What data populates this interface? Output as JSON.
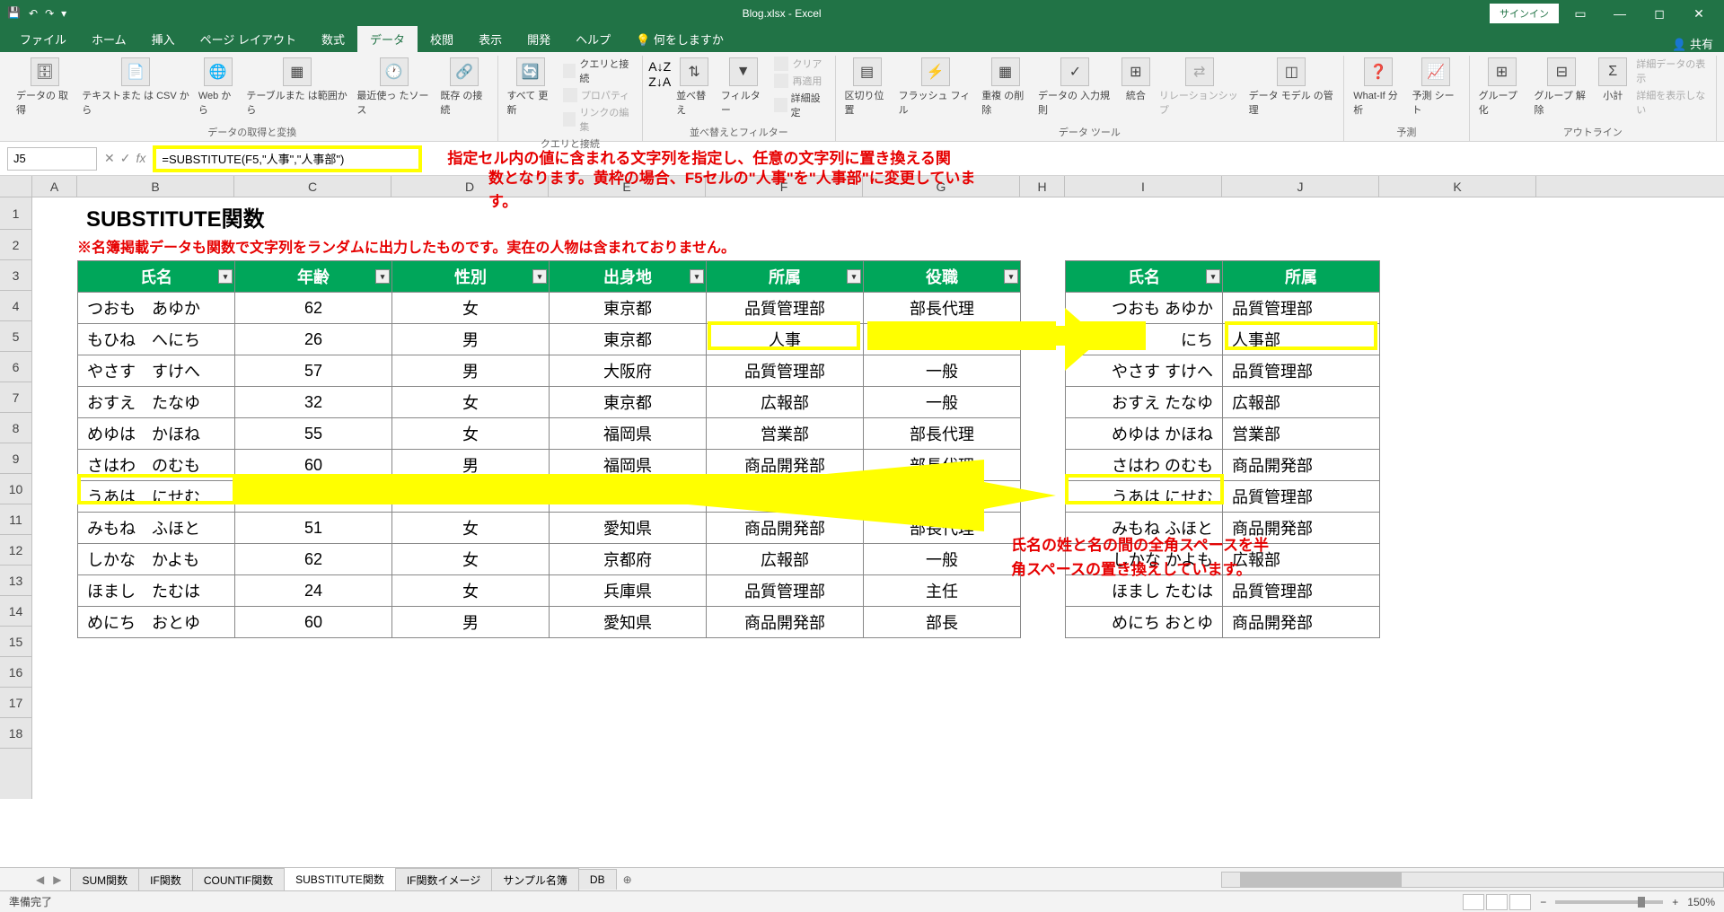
{
  "titlebar": {
    "filename": "Blog.xlsx - Excel",
    "signin": "サインイン"
  },
  "tabs": {
    "file": "ファイル",
    "home": "ホーム",
    "insert": "挿入",
    "page_layout": "ページ レイアウト",
    "formulas": "数式",
    "data": "データ",
    "review": "校閲",
    "view": "表示",
    "developer": "開発",
    "help": "ヘルプ",
    "tell_me": "何をしますか",
    "share": "共有"
  },
  "ribbon": {
    "g1": {
      "label": "データの取得と変換",
      "b1": "データの\n取得",
      "b2": "テキストまた\nは CSV から",
      "b3": "Web\nから",
      "b4": "テーブルまた\nは範囲から",
      "b5": "最近使っ\nたソース",
      "b6": "既存\nの接続"
    },
    "g2": {
      "label": "クエリと接続",
      "b1": "すべて\n更新",
      "s1": "クエリと接続",
      "s2": "プロパティ",
      "s3": "リンクの編集"
    },
    "g3": {
      "label": "並べ替えとフィルター",
      "b1": "並べ替え",
      "b2": "フィルター",
      "s1": "クリア",
      "s2": "再適用",
      "s3": "詳細設定"
    },
    "g4": {
      "label": "データ ツール",
      "b1": "区切り位置",
      "b2": "フラッシュ\nフィル",
      "b3": "重複\nの削除",
      "b4": "データの\n入力規則",
      "b5": "統合",
      "b6": "リレーションシップ",
      "b7": "データ モデル\nの管理"
    },
    "g5": {
      "label": "予測",
      "b1": "What-If 分析",
      "b2": "予測\nシート"
    },
    "g6": {
      "label": "アウトライン",
      "b1": "グループ\n化",
      "b2": "グループ\n解除",
      "b3": "小計",
      "s1": "詳細データの表示",
      "s2": "詳細を表示しない"
    }
  },
  "namebox": "J5",
  "formula": "=SUBSTITUTE(F5,\"人事\",\"人事部\")",
  "annotation1_l1": "指定セル内の値に含まれる文字列を指定し、任意の文字列に置き換える関",
  "annotation1_l2": "数となります。黄枠の場合、F5セルの\"人事\"を\"人事部\"に変更していま",
  "annotation1_l3": "す。",
  "annotation2_l1": "氏名の姓と名の間の全角スペースを半",
  "annotation2_l2": "角スペースの置き換えしています。",
  "cols": {
    "A": "A",
    "B": "B",
    "C": "C",
    "D": "D",
    "E": "E",
    "F": "F",
    "G": "G",
    "H": "H",
    "I": "I",
    "J": "J",
    "K": "K"
  },
  "content": {
    "title": "SUBSTITUTE関数",
    "note": "※名簿掲載データも関数で文字列をランダムに出力したものです。実在の人物は含まれておりません。"
  },
  "table1": {
    "h1": "氏名",
    "h2": "年齢",
    "h3": "性別",
    "h4": "出身地",
    "h5": "所属",
    "h6": "役職",
    "rows": [
      {
        "c1": "つおも　あゆか",
        "c2": "62",
        "c3": "女",
        "c4": "東京都",
        "c5": "品質管理部",
        "c6": "部長代理"
      },
      {
        "c1": "もひね　へにち",
        "c2": "26",
        "c3": "男",
        "c4": "東京都",
        "c5": "人事",
        "c6": ""
      },
      {
        "c1": "やさす　すけへ",
        "c2": "57",
        "c3": "男",
        "c4": "大阪府",
        "c5": "品質管理部",
        "c6": "一般"
      },
      {
        "c1": "おすえ　たなゆ",
        "c2": "32",
        "c3": "女",
        "c4": "東京都",
        "c5": "広報部",
        "c6": "一般"
      },
      {
        "c1": "めゆは　かほね",
        "c2": "55",
        "c3": "女",
        "c4": "福岡県",
        "c5": "営業部",
        "c6": "部長代理"
      },
      {
        "c1": "さはわ　のむも",
        "c2": "60",
        "c3": "男",
        "c4": "福岡県",
        "c5": "商品開発部",
        "c6": "部長代理"
      },
      {
        "c1": "うあは　にせむ",
        "c2": "",
        "c3": "",
        "c4": "",
        "c5": "",
        "c6": ""
      },
      {
        "c1": "みもね　ふほと",
        "c2": "51",
        "c3": "女",
        "c4": "愛知県",
        "c5": "商品開発部",
        "c6": "部長代理"
      },
      {
        "c1": "しかな　かよも",
        "c2": "62",
        "c3": "女",
        "c4": "京都府",
        "c5": "広報部",
        "c6": "一般"
      },
      {
        "c1": "ほまし　たむは",
        "c2": "24",
        "c3": "女",
        "c4": "兵庫県",
        "c5": "品質管理部",
        "c6": "主任"
      },
      {
        "c1": "めにち　おとゆ",
        "c2": "60",
        "c3": "男",
        "c4": "愛知県",
        "c5": "商品開発部",
        "c6": "部長"
      }
    ]
  },
  "table2": {
    "h1": "氏名",
    "h2": "所属",
    "rows": [
      {
        "c1": "つおも あゆか",
        "c2": "品質管理部"
      },
      {
        "c1": "にち",
        "c2": "人事部"
      },
      {
        "c1": "やさす すけへ",
        "c2": "品質管理部"
      },
      {
        "c1": "おすえ たなゆ",
        "c2": "広報部"
      },
      {
        "c1": "めゆは かほね",
        "c2": "営業部"
      },
      {
        "c1": "さはわ のむも",
        "c2": "商品開発部"
      },
      {
        "c1": "うあは にせむ",
        "c2": "品質管理部"
      },
      {
        "c1": "みもね ふほと",
        "c2": "商品開発部"
      },
      {
        "c1": "しかな かよも",
        "c2": "広報部"
      },
      {
        "c1": "ほまし たむは",
        "c2": "品質管理部"
      },
      {
        "c1": "めにち おとゆ",
        "c2": "商品開発部"
      }
    ]
  },
  "sheets": {
    "s1": "SUM関数",
    "s2": "IF関数",
    "s3": "COUNTIF関数",
    "s4": "SUBSTITUTE関数",
    "s5": "IF関数イメージ",
    "s6": "サンプル名簿",
    "s7": "DB"
  },
  "status": {
    "ready": "準備完了",
    "zoom": "150%"
  },
  "colors": {
    "excel_green": "#217346",
    "table_header": "#00a65a",
    "highlight": "#ffff00",
    "red_text": "#e60000"
  },
  "col_widths": {
    "A": 50,
    "B": 175,
    "C": 175,
    "D": 175,
    "E": 175,
    "F": 175,
    "G": 175,
    "H": 50,
    "I": 175,
    "J": 175,
    "K": 175
  }
}
